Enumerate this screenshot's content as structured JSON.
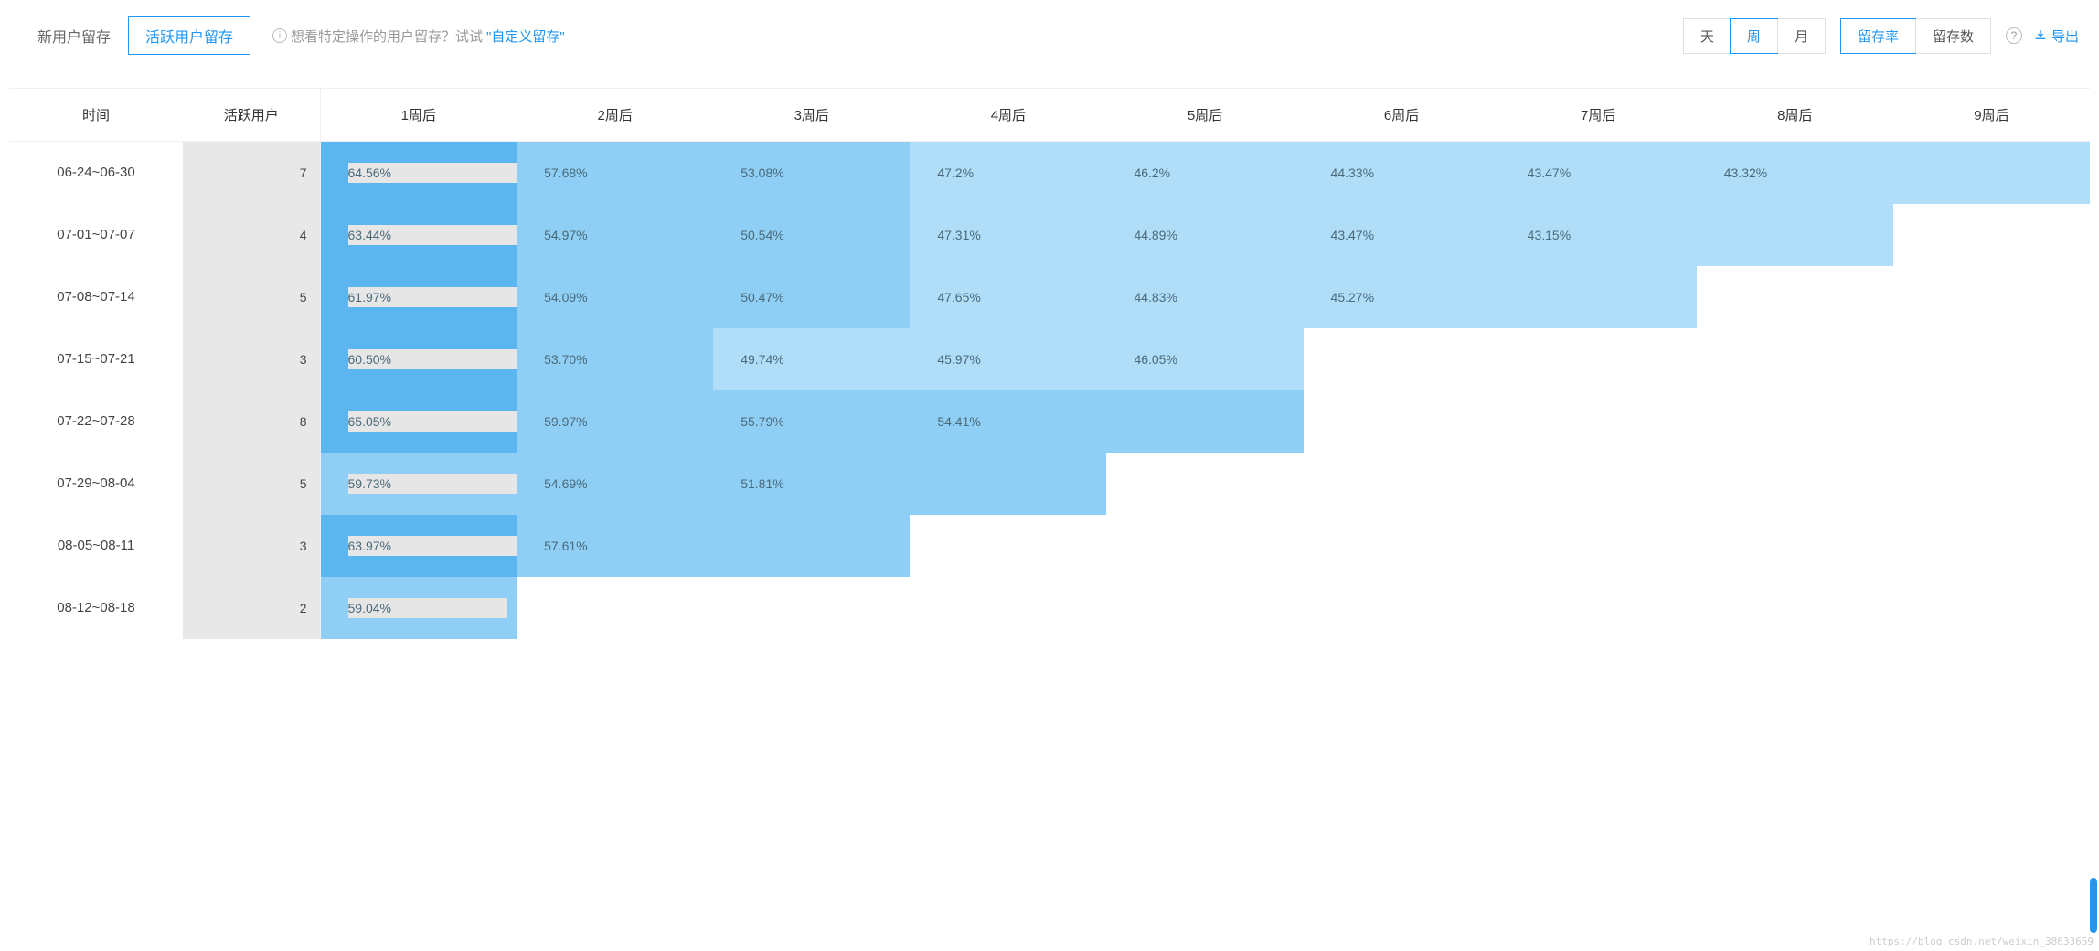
{
  "tabs": {
    "new_user": "新用户留存",
    "active_user": "活跃用户留存",
    "active_tab": "active_user"
  },
  "hint": {
    "prefix": "想看特定操作的用户留存？试试",
    "link": "\"自定义留存\""
  },
  "period_segments": {
    "day": "天",
    "week": "周",
    "month": "月",
    "active": "week"
  },
  "metric_segments": {
    "rate": "留存率",
    "count": "留存数",
    "active": "rate"
  },
  "export_label": "导出",
  "columns": {
    "time": "时间",
    "users": "活跃用户",
    "weeks": [
      "1周后",
      "2周后",
      "3周后",
      "4周后",
      "5周后",
      "6周后",
      "7周后",
      "8周后",
      "9周后"
    ]
  },
  "colors": {
    "shade_dark": "#5bb5ef",
    "shade_mid": "#8fcff5",
    "shade_light": "#b0ddf8",
    "bar_overlay": "#e6e6e6",
    "users_bg": "#e8e8e8"
  },
  "rows": [
    {
      "time": "06-24~06-30",
      "users_suffix": "7",
      "cells": [
        {
          "v": "64.56%",
          "shade": "dark"
        },
        {
          "v": "57.68%",
          "shade": "mid"
        },
        {
          "v": "53.08%",
          "shade": "mid"
        },
        {
          "v": "47.2%",
          "shade": "light"
        },
        {
          "v": "46.2%",
          "shade": "light"
        },
        {
          "v": "44.33%",
          "shade": "light"
        },
        {
          "v": "43.47%",
          "shade": "light"
        },
        {
          "v": "43.32%",
          "shade": "light"
        },
        {
          "v": "",
          "shade": "light"
        }
      ],
      "bar_span": 8
    },
    {
      "time": "07-01~07-07",
      "users_suffix": "4",
      "cells": [
        {
          "v": "63.44%",
          "shade": "dark"
        },
        {
          "v": "54.97%",
          "shade": "mid"
        },
        {
          "v": "50.54%",
          "shade": "mid"
        },
        {
          "v": "47.31%",
          "shade": "light"
        },
        {
          "v": "44.89%",
          "shade": "light"
        },
        {
          "v": "43.47%",
          "shade": "light"
        },
        {
          "v": "43.15%",
          "shade": "light"
        },
        {
          "v": "",
          "shade": "light"
        }
      ],
      "bar_span": 7
    },
    {
      "time": "07-08~07-14",
      "users_suffix": "5",
      "cells": [
        {
          "v": "61.97%",
          "shade": "dark"
        },
        {
          "v": "54.09%",
          "shade": "mid"
        },
        {
          "v": "50.47%",
          "shade": "mid"
        },
        {
          "v": "47.65%",
          "shade": "light"
        },
        {
          "v": "44.83%",
          "shade": "light"
        },
        {
          "v": "45.27%",
          "shade": "light"
        },
        {
          "v": "",
          "shade": "light"
        }
      ],
      "bar_span": 6
    },
    {
      "time": "07-15~07-21",
      "users_suffix": "3",
      "cells": [
        {
          "v": "60.50%",
          "shade": "dark"
        },
        {
          "v": "53.70%",
          "shade": "mid"
        },
        {
          "v": "49.74%",
          "shade": "light"
        },
        {
          "v": "45.97%",
          "shade": "light"
        },
        {
          "v": "46.05%",
          "shade": "light"
        }
      ],
      "bar_span": 5
    },
    {
      "time": "07-22~07-28",
      "users_suffix": "8",
      "cells": [
        {
          "v": "65.05%",
          "shade": "dark"
        },
        {
          "v": "59.97%",
          "shade": "mid"
        },
        {
          "v": "55.79%",
          "shade": "mid"
        },
        {
          "v": "54.41%",
          "shade": "mid"
        },
        {
          "v": "",
          "shade": "mid"
        }
      ],
      "bar_span": 4
    },
    {
      "time": "07-29~08-04",
      "users_suffix": "5",
      "cells": [
        {
          "v": "59.73%",
          "shade": "mid"
        },
        {
          "v": "54.69%",
          "shade": "mid"
        },
        {
          "v": "51.81%",
          "shade": "mid"
        },
        {
          "v": "",
          "shade": "mid"
        }
      ],
      "bar_span": 3
    },
    {
      "time": "08-05~08-11",
      "users_suffix": "3",
      "cells": [
        {
          "v": "63.97%",
          "shade": "dark"
        },
        {
          "v": "57.61%",
          "shade": "mid"
        },
        {
          "v": "",
          "shade": "mid"
        }
      ],
      "bar_span": 2
    },
    {
      "time": "08-12~08-18",
      "users_suffix": "2",
      "cells": [
        {
          "v": "59.04%",
          "shade": "mid"
        }
      ],
      "bar_span": 1
    }
  ],
  "watermark": "https://blog.csdn.net/weixin_38633659"
}
